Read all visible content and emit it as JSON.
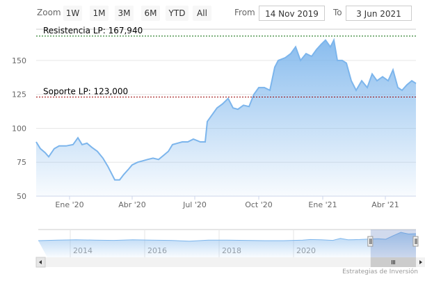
{
  "toolbar": {
    "zoom_label": "Zoom",
    "buttons": [
      "1W",
      "1M",
      "3M",
      "6M",
      "YTD",
      "All"
    ],
    "from_label": "From",
    "from_value": "14 Nov 2019",
    "to_label": "To",
    "to_value": "3 Jun 2021"
  },
  "credit": "Estrategias de Inversión",
  "colors": {
    "line": "#7cb5ec",
    "resistance": "#006600",
    "support": "#990000"
  },
  "chart_data": {
    "type": "area",
    "x_unit": "days since 14 Nov 2019",
    "ylim": [
      50,
      173
    ],
    "y_ticks": [
      50,
      75,
      100,
      125,
      150
    ],
    "x_ticks": [
      {
        "day": 48,
        "label": "Ene '20"
      },
      {
        "day": 138,
        "label": "Abr '20"
      },
      {
        "day": 228,
        "label": "Jul '20"
      },
      {
        "day": 320,
        "label": "Oct '20"
      },
      {
        "day": 412,
        "label": "Ene '21"
      },
      {
        "day": 502,
        "label": "Abr '21"
      }
    ],
    "plot_lines": [
      {
        "label": "Resistencia LP: 167,940",
        "value": 167.94
      },
      {
        "label": "Soporte LP: 123,000",
        "value": 123.0
      }
    ],
    "points": [
      [
        0,
        90
      ],
      [
        6,
        85
      ],
      [
        13,
        82
      ],
      [
        18,
        79
      ],
      [
        26,
        85
      ],
      [
        33,
        87
      ],
      [
        43,
        87
      ],
      [
        53,
        88
      ],
      [
        60,
        93
      ],
      [
        66,
        88
      ],
      [
        73,
        89
      ],
      [
        80,
        86
      ],
      [
        88,
        83
      ],
      [
        96,
        78
      ],
      [
        103,
        72
      ],
      [
        108,
        67
      ],
      [
        113,
        62
      ],
      [
        120,
        62
      ],
      [
        126,
        66
      ],
      [
        133,
        70
      ],
      [
        138,
        73
      ],
      [
        146,
        75
      ],
      [
        153,
        76
      ],
      [
        160,
        77
      ],
      [
        168,
        78
      ],
      [
        176,
        77
      ],
      [
        183,
        80
      ],
      [
        190,
        83
      ],
      [
        196,
        88
      ],
      [
        203,
        89
      ],
      [
        210,
        90
      ],
      [
        218,
        90
      ],
      [
        226,
        92
      ],
      [
        236,
        90
      ],
      [
        243,
        90
      ],
      [
        246,
        105
      ],
      [
        253,
        110
      ],
      [
        260,
        115
      ],
      [
        268,
        118
      ],
      [
        276,
        122
      ],
      [
        283,
        115
      ],
      [
        290,
        114
      ],
      [
        298,
        117
      ],
      [
        306,
        116
      ],
      [
        313,
        125
      ],
      [
        320,
        130
      ],
      [
        328,
        130
      ],
      [
        336,
        128
      ],
      [
        343,
        145
      ],
      [
        348,
        150
      ],
      [
        358,
        152
      ],
      [
        366,
        155
      ],
      [
        373,
        160
      ],
      [
        380,
        150
      ],
      [
        388,
        155
      ],
      [
        396,
        153
      ],
      [
        403,
        158
      ],
      [
        410,
        162
      ],
      [
        416,
        165
      ],
      [
        423,
        160
      ],
      [
        428,
        165
      ],
      [
        433,
        150
      ],
      [
        440,
        150
      ],
      [
        446,
        148
      ],
      [
        453,
        135
      ],
      [
        460,
        128
      ],
      [
        468,
        135
      ],
      [
        476,
        130
      ],
      [
        483,
        140
      ],
      [
        490,
        135
      ],
      [
        498,
        138
      ],
      [
        506,
        135
      ],
      [
        513,
        143
      ],
      [
        520,
        130
      ],
      [
        526,
        128
      ],
      [
        533,
        132
      ],
      [
        540,
        135
      ],
      [
        546,
        133
      ]
    ],
    "navigator": {
      "x_labels": [
        "2014",
        "2016",
        "2018",
        "2020"
      ],
      "points": [
        [
          0,
          60
        ],
        [
          5,
          62
        ],
        [
          10,
          63
        ],
        [
          15,
          62
        ],
        [
          20,
          61
        ],
        [
          25,
          63
        ],
        [
          30,
          62
        ],
        [
          35,
          61
        ],
        [
          40,
          58
        ],
        [
          45,
          62
        ],
        [
          50,
          62
        ],
        [
          55,
          61
        ],
        [
          60,
          60
        ],
        [
          65,
          60
        ],
        [
          70,
          62
        ],
        [
          72,
          64
        ],
        [
          75,
          63
        ],
        [
          78,
          61
        ],
        [
          80,
          68
        ],
        [
          82,
          63
        ],
        [
          85,
          64
        ],
        [
          88,
          66
        ],
        [
          90,
          67
        ],
        [
          92,
          65
        ],
        [
          94,
          78
        ],
        [
          96,
          90
        ],
        [
          97,
          87
        ],
        [
          98,
          84
        ],
        [
          100,
          85
        ]
      ],
      "selected_range": [
        88,
        100
      ]
    }
  }
}
